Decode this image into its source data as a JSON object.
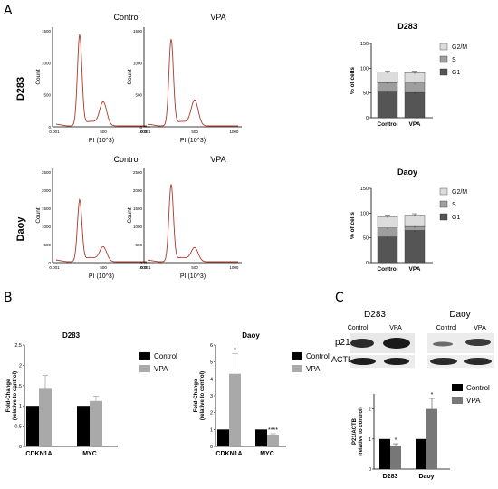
{
  "panels": {
    "a": "A",
    "b": "B",
    "c": "C"
  },
  "flow": {
    "col_titles": [
      "Control",
      "VPA"
    ],
    "row_labels": [
      "D283",
      "Daoy"
    ],
    "ylabel": "Count",
    "xlabel": "PI (10^3)",
    "d283_yticks": [
      "1500",
      "1000",
      "500",
      "0"
    ],
    "daoy_yticks": [
      "2500",
      "2000",
      "1500",
      "1000",
      "500",
      "0"
    ],
    "xticks": [
      "0.001",
      "500",
      "1000"
    ]
  },
  "chart_data": [
    {
      "type": "bar",
      "id": "cell-cycle-d283",
      "stacked": true,
      "title": "D283",
      "ylabel": "% of cells",
      "categories": [
        "Control",
        "VPA"
      ],
      "series": [
        {
          "name": "G1",
          "values": [
            52,
            51
          ],
          "color": "#555555"
        },
        {
          "name": "S",
          "values": [
            19,
            19
          ],
          "color": "#9e9e9e"
        },
        {
          "name": "G2/M",
          "values": [
            21,
            21
          ],
          "color": "#dcdcdc"
        }
      ],
      "ylim": [
        0,
        150
      ],
      "yticks": [
        0,
        50,
        100,
        150
      ],
      "legend": "right"
    },
    {
      "type": "bar",
      "id": "cell-cycle-daoy",
      "stacked": true,
      "title": "Daoy",
      "ylabel": "% of cells",
      "categories": [
        "Control",
        "VPA"
      ],
      "series": [
        {
          "name": "G1",
          "values": [
            52,
            65
          ],
          "color": "#555555"
        },
        {
          "name": "S",
          "values": [
            18,
            8
          ],
          "color": "#9e9e9e"
        },
        {
          "name": "G2/M",
          "values": [
            23,
            23
          ],
          "color": "#dcdcdc"
        }
      ],
      "ylim": [
        0,
        150
      ],
      "yticks": [
        0,
        50,
        100,
        150
      ],
      "legend": "right"
    },
    {
      "type": "bar",
      "id": "qpcr-d283",
      "title": "D283",
      "ylabel": "Fold-Change (relative to control)",
      "categories": [
        "CDKN1A",
        "MYC"
      ],
      "series": [
        {
          "name": "Control",
          "values": [
            1.0,
            1.0
          ],
          "err": [
            0,
            0
          ],
          "color": "#000000"
        },
        {
          "name": "VPA",
          "values": [
            1.42,
            1.12
          ],
          "err": [
            0.33,
            0.12
          ],
          "color": "#a9a9a9"
        }
      ],
      "ylim": [
        0,
        2.5
      ],
      "yticks": [
        0,
        0.5,
        1.0,
        1.5,
        2.0,
        2.5
      ],
      "legend": "right"
    },
    {
      "type": "bar",
      "id": "qpcr-daoy",
      "title": "Daoy",
      "ylabel": "Fold-Change (relative to control)",
      "categories": [
        "CDKN1A",
        "MYC"
      ],
      "series": [
        {
          "name": "Control",
          "values": [
            1.0,
            1.0
          ],
          "err": [
            0,
            0
          ],
          "color": "#000000"
        },
        {
          "name": "VPA",
          "values": [
            4.3,
            0.7
          ],
          "err": [
            1.2,
            0.05
          ],
          "color": "#a9a9a9"
        }
      ],
      "annotations": [
        "*",
        "****"
      ],
      "ylim": [
        0,
        6
      ],
      "yticks": [
        0,
        1,
        2,
        3,
        4,
        5,
        6
      ],
      "legend": "right"
    },
    {
      "type": "bar",
      "id": "p21-quant",
      "title": "",
      "ylabel": "P21/ACTB (relative to control)",
      "categories": [
        "D283",
        "Daoy"
      ],
      "series": [
        {
          "name": "Control",
          "values": [
            1.0,
            1.0
          ],
          "err": [
            0,
            0
          ],
          "color": "#000000"
        },
        {
          "name": "VPA",
          "values": [
            0.78,
            2.0
          ],
          "err": [
            0.06,
            0.35
          ],
          "color": "#777777"
        }
      ],
      "annotations": [
        "*",
        "*"
      ],
      "ylim": [
        0,
        2.5
      ],
      "yticks": [
        0,
        1,
        2
      ],
      "legend": "top-right"
    }
  ],
  "blot": {
    "cell_lines": [
      "D283",
      "Daoy"
    ],
    "lane_labels": [
      "Control",
      "VPA",
      "Control",
      "VPA"
    ],
    "row_labels": [
      "p21",
      "ACTB"
    ]
  }
}
